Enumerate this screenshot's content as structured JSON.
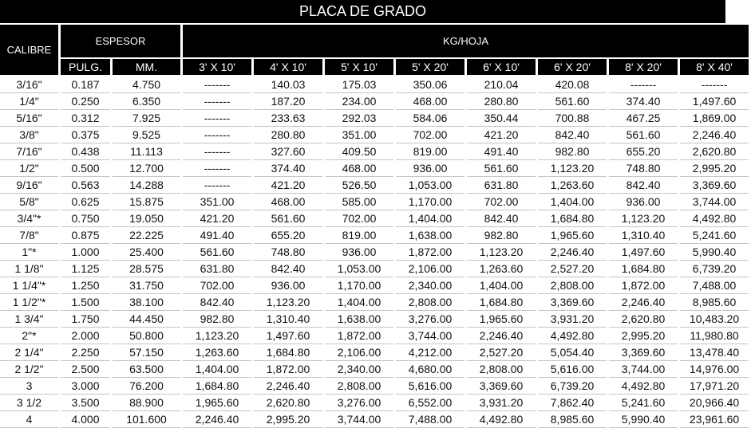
{
  "title": "PLACA  DE GRADO",
  "headers": {
    "calibre": "CALIBRE",
    "espesor": "ESPESOR",
    "kg_hoja": "KG/HOJA",
    "pulg": "PULG.",
    "mm": "MM.",
    "sizes": [
      "3' X 10'",
      "4' X 10'",
      "5' X 10'",
      "5' X 20'",
      "6' X 10'",
      "6' X 20'",
      "8' X 20'",
      "8' X 40'"
    ]
  },
  "rows": [
    [
      "3/16\"",
      "0.187",
      "4.750",
      "-------",
      "140.03",
      "175.03",
      "350.06",
      "210.04",
      "420.08",
      "-------",
      "-------"
    ],
    [
      "1/4\"",
      "0.250",
      "6.350",
      "-------",
      "187.20",
      "234.00",
      "468.00",
      "280.80",
      "561.60",
      "374.40",
      "1,497.60"
    ],
    [
      "5/16\"",
      "0.312",
      "7.925",
      "-------",
      "233.63",
      "292.03",
      "584.06",
      "350.44",
      "700.88",
      "467.25",
      "1,869.00"
    ],
    [
      "3/8\"",
      "0.375",
      "9.525",
      "-------",
      "280.80",
      "351.00",
      "702.00",
      "421.20",
      "842.40",
      "561.60",
      "2,246.40"
    ],
    [
      "7/16\"",
      "0.438",
      "11.113",
      "-------",
      "327.60",
      "409.50",
      "819.00",
      "491.40",
      "982.80",
      "655.20",
      "2,620.80"
    ],
    [
      "1/2\"",
      "0.500",
      "12.700",
      "-------",
      "374.40",
      "468.00",
      "936.00",
      "561.60",
      "1,123.20",
      "748.80",
      "2,995.20"
    ],
    [
      "9/16\"",
      "0.563",
      "14.288",
      "-------",
      "421.20",
      "526.50",
      "1,053.00",
      "631.80",
      "1,263.60",
      "842.40",
      "3,369.60"
    ],
    [
      "5/8\"",
      "0.625",
      "15.875",
      "351.00",
      "468.00",
      "585.00",
      "1,170.00",
      "702.00",
      "1,404.00",
      "936.00",
      "3,744.00"
    ],
    [
      "3/4\"*",
      "0.750",
      "19.050",
      "421.20",
      "561.60",
      "702.00",
      "1,404.00",
      "842.40",
      "1,684.80",
      "1,123.20",
      "4,492.80"
    ],
    [
      "7/8\"",
      "0.875",
      "22.225",
      "491.40",
      "655.20",
      "819.00",
      "1,638.00",
      "982.80",
      "1,965.60",
      "1,310.40",
      "5,241.60"
    ],
    [
      "1\"*",
      "1.000",
      "25.400",
      "561.60",
      "748.80",
      "936.00",
      "1,872.00",
      "1,123.20",
      "2,246.40",
      "1,497.60",
      "5,990.40"
    ],
    [
      "1 1/8\"",
      "1.125",
      "28.575",
      "631.80",
      "842.40",
      "1,053.00",
      "2,106.00",
      "1,263.60",
      "2,527.20",
      "1,684.80",
      "6,739.20"
    ],
    [
      "1 1/4\"*",
      "1.250",
      "31.750",
      "702.00",
      "936.00",
      "1,170.00",
      "2,340.00",
      "1,404.00",
      "2,808.00",
      "1,872.00",
      "7,488.00"
    ],
    [
      "1 1/2\"*",
      "1.500",
      "38.100",
      "842.40",
      "1,123.20",
      "1,404.00",
      "2,808.00",
      "1,684.80",
      "3,369.60",
      "2,246.40",
      "8,985.60"
    ],
    [
      "1 3/4\"",
      "1.750",
      "44.450",
      "982.80",
      "1,310.40",
      "1,638.00",
      "3,276.00",
      "1,965.60",
      "3,931.20",
      "2,620.80",
      "10,483.20"
    ],
    [
      "2\"*",
      "2.000",
      "50.800",
      "1,123.20",
      "1,497.60",
      "1,872.00",
      "3,744.00",
      "2,246.40",
      "4,492.80",
      "2,995.20",
      "11,980.80"
    ],
    [
      "2 1/4\"",
      "2.250",
      "57.150",
      "1,263.60",
      "1,684.80",
      "2,106.00",
      "4,212.00",
      "2,527.20",
      "5,054.40",
      "3,369.60",
      "13,478.40"
    ],
    [
      "2 1/2\"",
      "2.500",
      "63.500",
      "1,404.00",
      "1,872.00",
      "2,340.00",
      "4,680.00",
      "2,808.00",
      "5,616.00",
      "3,744.00",
      "14,976.00"
    ],
    [
      "3",
      "3.000",
      "76.200",
      "1,684.80",
      "2,246.40",
      "2,808.00",
      "5,616.00",
      "3,369.60",
      "6,739.20",
      "4,492.80",
      "17,971.20"
    ],
    [
      "3 1/2",
      "3.500",
      "88.900",
      "1,965.60",
      "2,620.80",
      "3,276.00",
      "6,552.00",
      "3,931.20",
      "7,862.40",
      "5,241.60",
      "20,966.40"
    ],
    [
      "4",
      "4.000",
      "101.600",
      "2,246.40",
      "2,995.20",
      "3,744.00",
      "7,488.00",
      "4,492.80",
      "8,985.60",
      "5,990.40",
      "23,961.60"
    ]
  ]
}
